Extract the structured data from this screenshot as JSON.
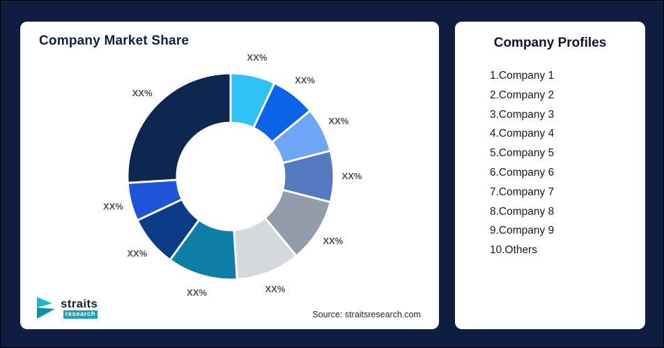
{
  "page": {
    "background": "#101D40"
  },
  "left_card": {
    "title": "Company Market Share",
    "source": "Source: straitsresearch.com",
    "logo": {
      "name": "straits",
      "sub": "research"
    }
  },
  "right_card": {
    "title": "Company Profiles",
    "items": [
      "1.Company 1",
      "2.Company 2",
      "3.Company 3",
      "4.Company 4",
      "5.Company 5",
      "6.Company 6",
      "7.Company 7",
      "8.Company 8",
      "9.Company 9",
      "10.Others"
    ]
  },
  "chart_data": {
    "type": "pie",
    "subtype": "donut",
    "title": "Company Market Share",
    "legend": false,
    "labels": [
      "XX%",
      "XX%",
      "XX%",
      "XX%",
      "XX%",
      "XX%",
      "XX%",
      "XX%",
      "XX%",
      "XX%"
    ],
    "values": [
      7,
      7,
      7,
      8,
      10,
      10,
      11,
      8,
      6,
      26
    ],
    "colors": [
      "#2fc2f6",
      "#0a63e9",
      "#6ea5f6",
      "#5379c1",
      "#939cab",
      "#d5d8dd",
      "#0e7ea6",
      "#0c3c88",
      "#1f53da",
      "#0d2750"
    ],
    "inner_radius_ratio": 0.52,
    "start_angle_deg": 0,
    "direction": "clockwise"
  }
}
